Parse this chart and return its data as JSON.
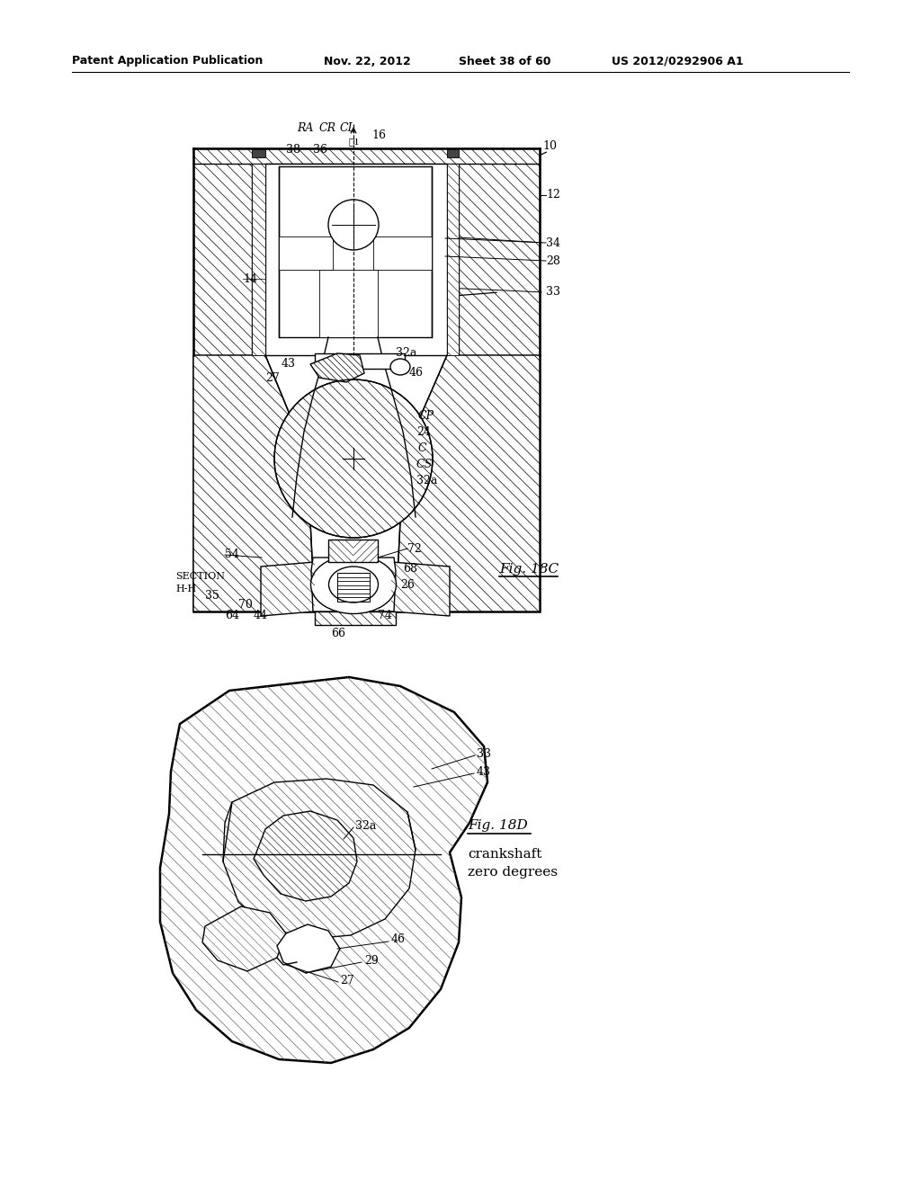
{
  "bg_color": "#ffffff",
  "line_color": "#000000",
  "header_text": "Patent Application Publication",
  "header_date": "Nov. 22, 2012",
  "header_sheet": "Sheet 38 of 60",
  "header_patent": "US 2012/0292906 A1",
  "fig18c_label": "Fig. 18C",
  "fig18d_label": "Fig. 18D",
  "crankshaft_label_line1": "crankshaft",
  "crankshaft_label_line2": "zero degrees"
}
